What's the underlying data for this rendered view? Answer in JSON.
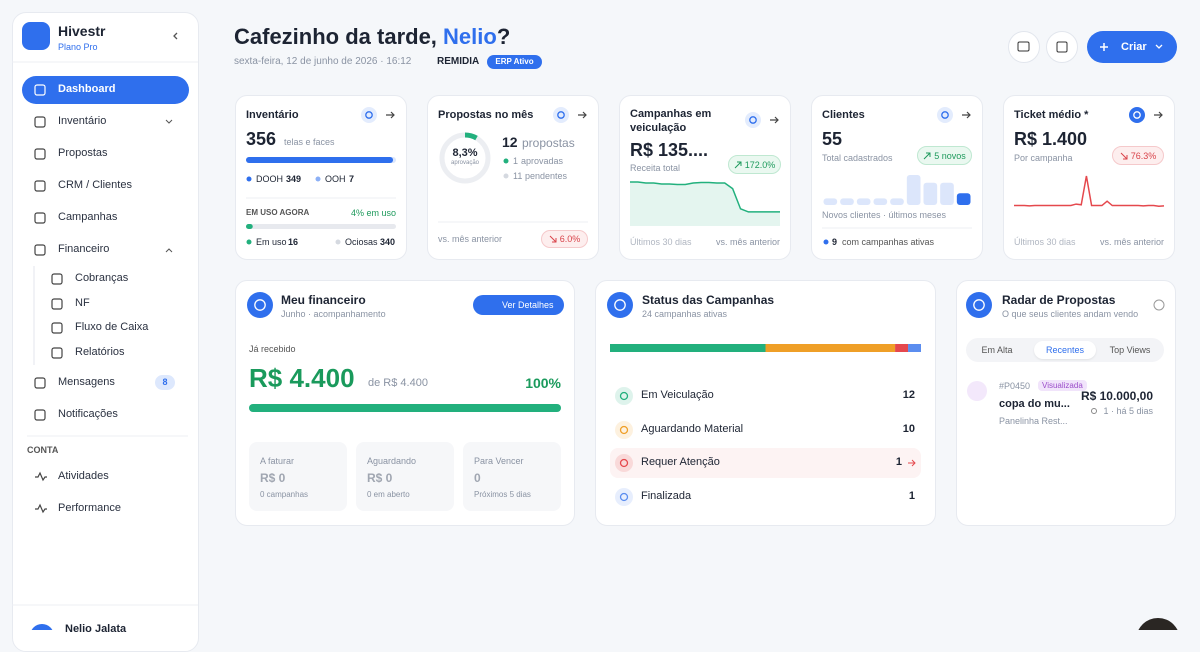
{
  "sidebar": {
    "brand": "Hivestr",
    "plan": "Plano Pro",
    "nav": [
      "Dashboard",
      "Inventário",
      "Propostas",
      "CRM / Clientes",
      "Campanhas",
      "Financeiro"
    ],
    "financeiro_sub": [
      "Cobranças",
      "NF",
      "Fluxo de Caixa",
      "Relatórios"
    ],
    "nav2": [
      "Mensagens",
      "Notificações"
    ],
    "mensagens_badge": 8,
    "section": "CONTA",
    "conta": [
      "Atividades",
      "Performance"
    ],
    "user": "Nelio Jalata"
  },
  "header": {
    "greeting": "Cafezinho da tarde,",
    "name": "Nelio",
    "punct": "?",
    "date": "sexta-feira, 12 de junho de 2026 · 16:12",
    "company": "REMIDIA",
    "badge": "ERP Ativo",
    "create": "Criar"
  },
  "kpis": [
    {
      "title": "Inventário",
      "value": 356,
      "unit": "telas e faces",
      "dooh": {
        "label": "DOOH",
        "value": 349
      },
      "ooh": {
        "label": "OOH",
        "value": 7
      },
      "usage_title": "EM USO AGORA",
      "usage_pct": "4% em uso",
      "in_use": {
        "label": "Em uso",
        "value": 16
      },
      "idle": {
        "label": "Ociosas",
        "value": 340
      }
    },
    {
      "title": "Propostas no mês",
      "rate": "8,3%",
      "rate_label": "aprovação",
      "count": 12,
      "count_label": "propostas",
      "approved": {
        "value": 1,
        "label": "aprovadas"
      },
      "pending": {
        "value": 11,
        "label": "pendentes"
      },
      "footer": "vs. mês anterior",
      "delta": "6.0%"
    },
    {
      "title": "Campanhas em veiculação",
      "value": "R$ 135....",
      "caption": "Receita total",
      "delta": "172.0%",
      "sparkline": [
        75,
        75,
        73,
        73,
        71,
        71,
        70,
        70,
        73,
        74,
        74,
        73,
        73,
        62,
        22,
        16,
        16,
        16,
        16,
        16
      ],
      "footer_left": "Últimos 30 dias",
      "footer_right": "vs. mês anterior"
    },
    {
      "title": "Clientes",
      "value": 55,
      "caption": "Total cadastrados",
      "delta": "5 novos",
      "bars": [
        1,
        1,
        1,
        1,
        1,
        10,
        7,
        7,
        3
      ],
      "chart_caption": "Novos clientes · últimos meses",
      "active": {
        "value": 9,
        "label": "com campanhas ativas"
      }
    },
    {
      "title": "Ticket médio *",
      "value": "R$ 1.400",
      "caption": "Por campanha",
      "delta": "76.3%",
      "sparkline": [
        18,
        18,
        18,
        17,
        18,
        18,
        18,
        18,
        18,
        18,
        18,
        18,
        22,
        20,
        100,
        18,
        18,
        18,
        30,
        18,
        18,
        18,
        18,
        18,
        18,
        17,
        18,
        18,
        16,
        17
      ],
      "footer_left": "Últimos 30 dias",
      "footer_right": "vs. mês anterior"
    }
  ],
  "financeiro": {
    "title": "Meu financeiro",
    "subtitle": "Junho · acompanhamento",
    "button": "Ver Detalhes",
    "received_label": "Já recebido",
    "received": "R$ 4.400",
    "of": "de R$ 4.400",
    "percent": {
      "value": 100,
      "label": "100%"
    },
    "boxes": [
      {
        "label": "A faturar",
        "value": "R$ 0",
        "note": "0 campanhas"
      },
      {
        "label": "Aguardando",
        "value": "R$ 0",
        "note": "0 em aberto"
      },
      {
        "label": "Para Vencer",
        "value": 0,
        "note": "Próximos 5 dias"
      }
    ]
  },
  "status": {
    "title": "Status das Campanhas",
    "subtitle": "24 campanhas ativas",
    "items": [
      {
        "label": "Em Veiculação",
        "value": 12,
        "color": "#22b07d"
      },
      {
        "label": "Aguardando Material",
        "value": 10,
        "color": "#ef9f27"
      },
      {
        "label": "Requer Atenção",
        "value": 1,
        "color": "#e5484d"
      },
      {
        "label": "Finalizada",
        "value": 1,
        "color": "#5b8def"
      }
    ]
  },
  "radar": {
    "title": "Radar de Propostas",
    "subtitle": "O que seus clientes andam vendo",
    "tabs": [
      "Em Alta",
      "Recentes",
      "Top Views"
    ],
    "active_tab": 1,
    "items": [
      {
        "initials": "PM",
        "code": "#P0450",
        "status": "Visualizada",
        "name": "copa do mu...",
        "client": "Panelinha Rest...",
        "value": "R$ 10.000,00",
        "meta": "1 · há 5 dias"
      }
    ]
  }
}
